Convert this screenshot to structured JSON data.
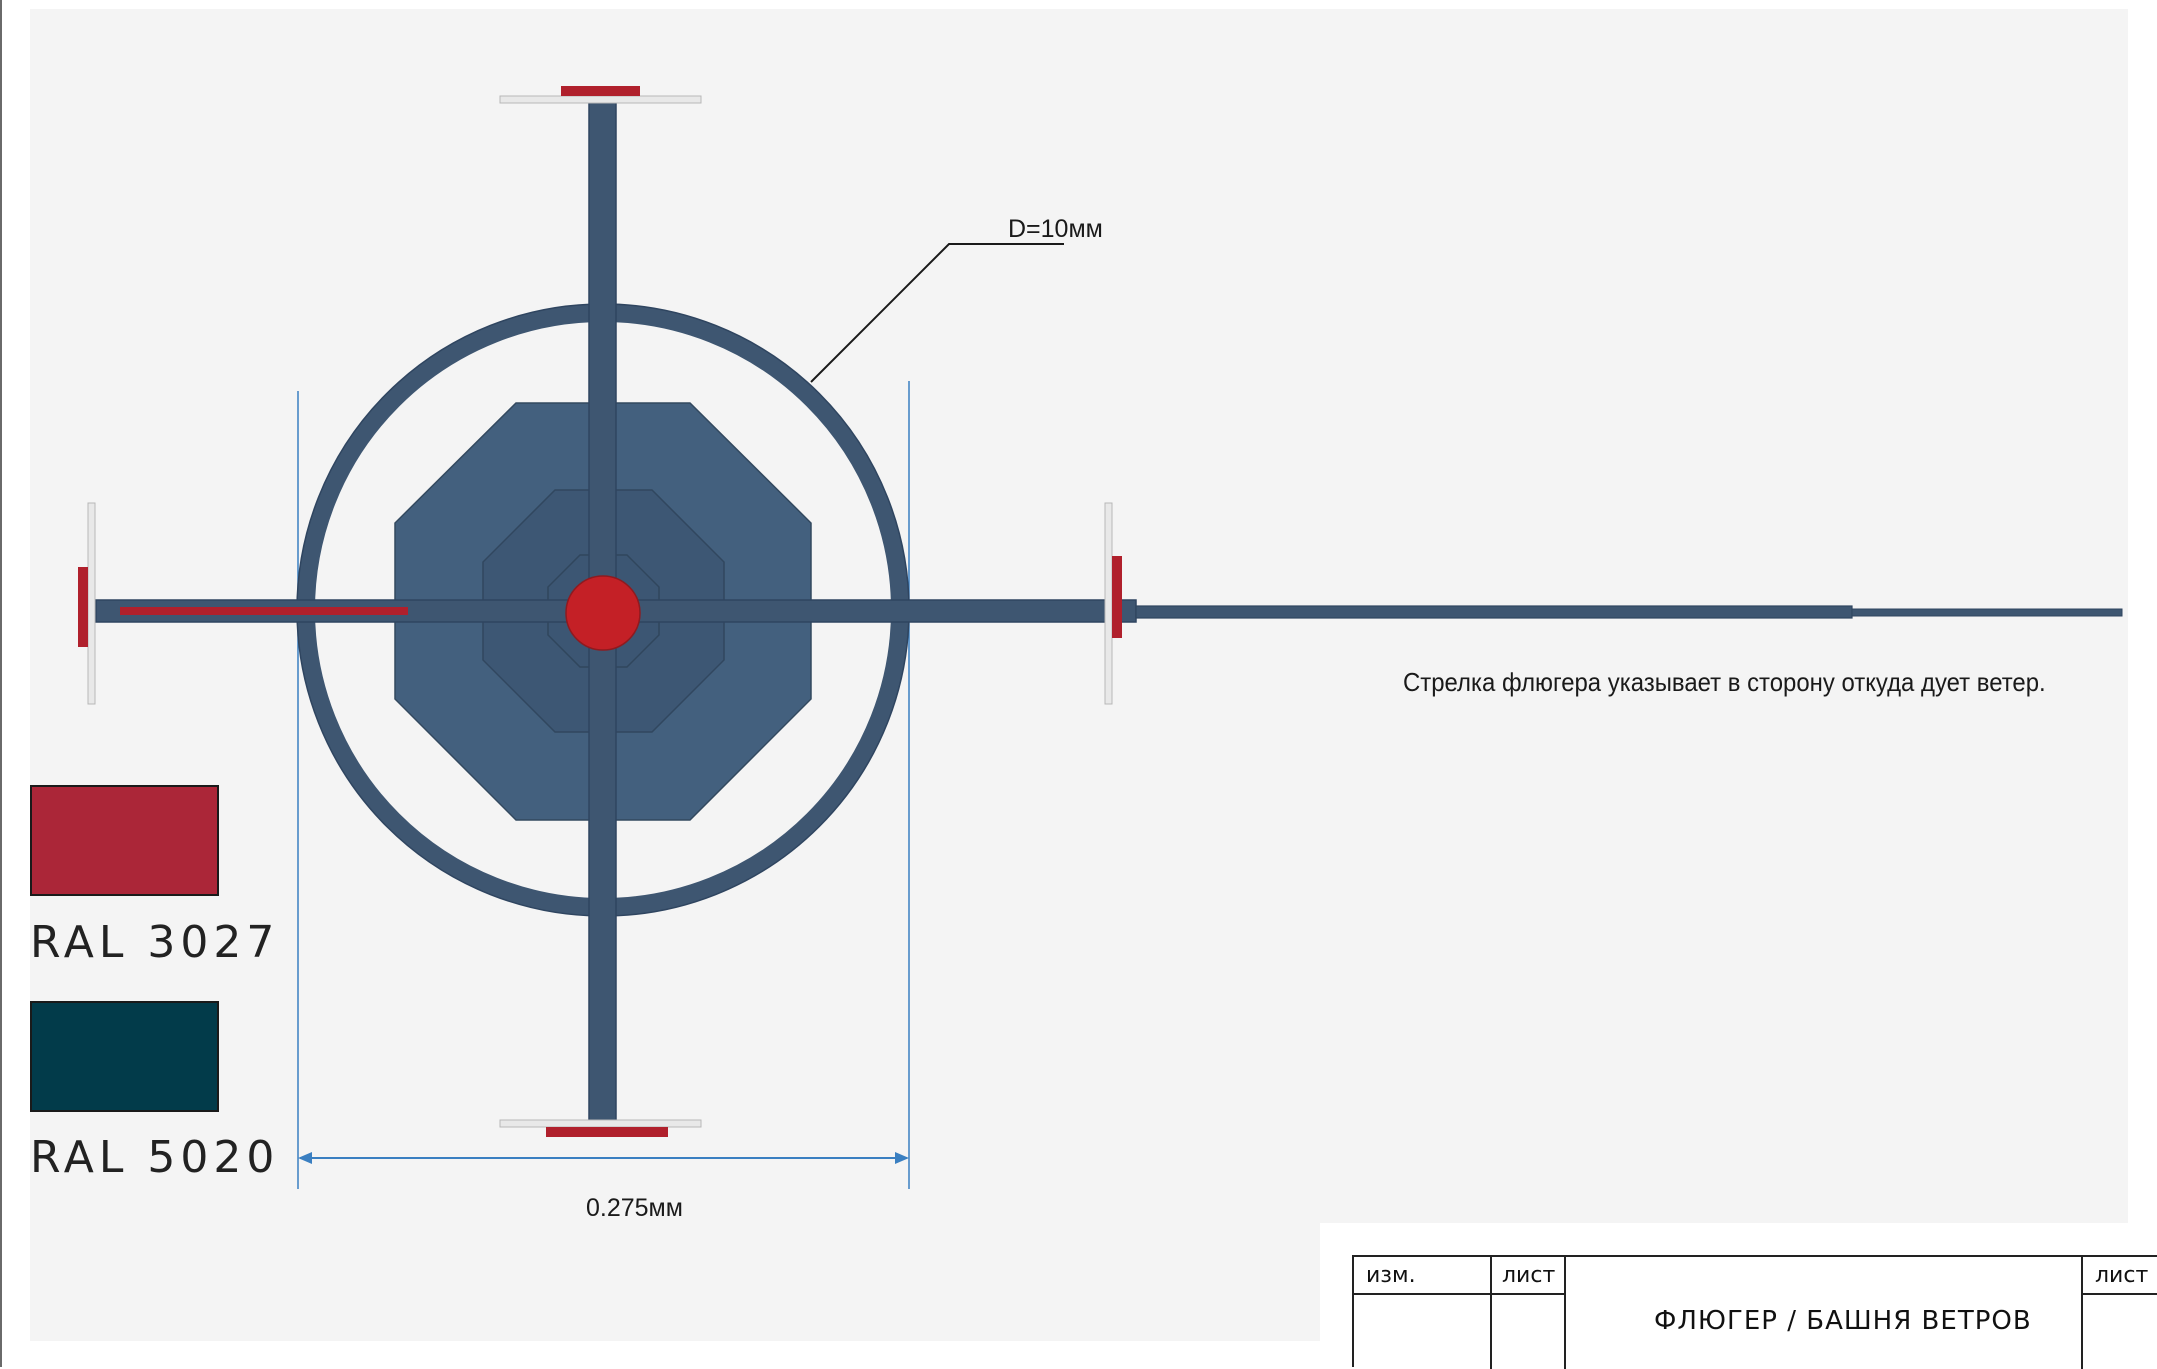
{
  "labels": {
    "diameter": "D=10мм",
    "width": "0.275мм",
    "note": "Стрелка флюгера указывает  в сторону откуда дует ветер."
  },
  "swatches": [
    {
      "code": "RAL 3027",
      "color": "#ab2638"
    },
    {
      "code": "RAL 5020",
      "color": "#023b4a"
    }
  ],
  "colors": {
    "steel": "#3e5671",
    "steel_dark": "#2f4560",
    "accent_red": "#b0202c",
    "flange": "#e8e8e8",
    "dimension_blue": "#3a7fc1",
    "panel": "#f4f4f4"
  },
  "title_block": {
    "izm": "изм.",
    "list_left": "лист",
    "title": "ФЛЮГЕР / БАШНЯ ВЕТРОВ",
    "list_right": "лист"
  }
}
